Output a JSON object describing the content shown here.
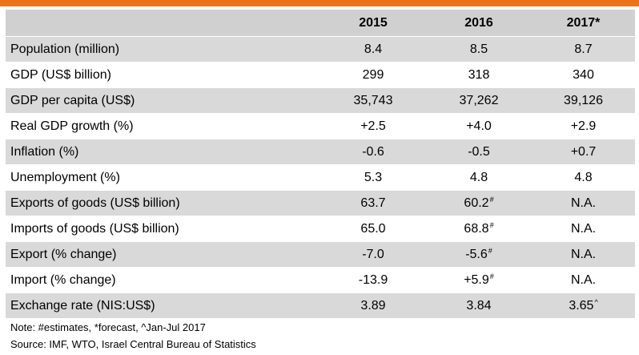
{
  "header": {
    "blank": "",
    "years": [
      "2015",
      "2016",
      "2017*"
    ]
  },
  "rows": [
    {
      "label": "Population (million)",
      "values": [
        "8.4",
        "8.5",
        "8.7"
      ],
      "marks": [
        "",
        "",
        ""
      ]
    },
    {
      "label": "GDP (US$ billion)",
      "values": [
        "299",
        "318",
        "340"
      ],
      "marks": [
        "",
        "",
        ""
      ]
    },
    {
      "label": "GDP per capita (US$)",
      "values": [
        "35,743",
        "37,262",
        "39,126"
      ],
      "marks": [
        "",
        "",
        ""
      ]
    },
    {
      "label": "Real GDP growth (%)",
      "values": [
        "+2.5",
        "+4.0",
        "+2.9"
      ],
      "marks": [
        "",
        "",
        ""
      ]
    },
    {
      "label": "Inflation (%)",
      "values": [
        "-0.6",
        "-0.5",
        "+0.7"
      ],
      "marks": [
        "",
        "",
        ""
      ]
    },
    {
      "label": "Unemployment (%)",
      "values": [
        "5.3",
        "4.8",
        "4.8"
      ],
      "marks": [
        "",
        "",
        ""
      ]
    },
    {
      "label": "Exports of goods (US$ billion)",
      "values": [
        "63.7",
        "60.2",
        "N.A."
      ],
      "marks": [
        "",
        "#",
        ""
      ]
    },
    {
      "label": "Imports of goods (US$ billion)",
      "values": [
        "65.0",
        "68.8",
        "N.A."
      ],
      "marks": [
        "",
        "#",
        ""
      ]
    },
    {
      "label": "Export (% change)",
      "values": [
        "-7.0",
        "-5.6",
        "N.A."
      ],
      "marks": [
        "",
        "#",
        ""
      ]
    },
    {
      "label": "Import (% change)",
      "values": [
        "-13.9",
        "+5.9",
        "N.A."
      ],
      "marks": [
        "",
        "#",
        ""
      ]
    },
    {
      "label": "Exchange rate (NIS:US$)",
      "values": [
        "3.89",
        "3.84",
        "3.65"
      ],
      "marks": [
        "",
        "",
        "^"
      ]
    }
  ],
  "notes": {
    "note": "Note: #estimates, *forecast, ^Jan-Jul 2017",
    "source": "Source: IMF, WTO, Israel Central Bureau of Statistics"
  },
  "colors": {
    "accent_bar": "#e8731a",
    "header_bg": "#d0d0d0",
    "shaded_row_bg": "#d9d9d9",
    "plain_row_bg": "#ffffff"
  }
}
